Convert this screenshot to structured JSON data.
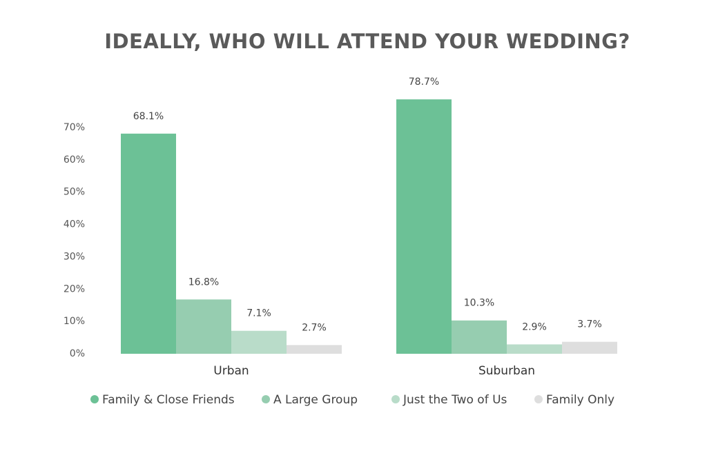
{
  "chart_data": {
    "type": "bar",
    "title": "IDEALLY, WHO WILL ATTEND YOUR WEDDING?",
    "categories": [
      "Urban",
      "Suburban"
    ],
    "series": [
      {
        "name": "Family & Close Friends",
        "color": "#6cc196",
        "values": [
          68.1,
          78.7
        ],
        "value_labels": [
          "68.1%",
          "78.7%"
        ]
      },
      {
        "name": "A Large Group",
        "color": "#96cdb0",
        "values": [
          16.8,
          10.3
        ],
        "value_labels": [
          "16.8%",
          "10.3%"
        ]
      },
      {
        "name": "Just the Two of Us",
        "color": "#b9dcc9",
        "values": [
          7.1,
          2.9
        ],
        "value_labels": [
          "7.1%",
          "2.9%"
        ]
      },
      {
        "name": "Family Only",
        "color": "#dedede",
        "values": [
          2.7,
          3.7
        ],
        "value_labels": [
          "2.7%",
          "3.7%"
        ]
      }
    ],
    "ylim": [
      0,
      80
    ],
    "yticks": [
      {
        "value": 0,
        "label": "0%"
      },
      {
        "value": 10,
        "label": "10%"
      },
      {
        "value": 20,
        "label": "20%"
      },
      {
        "value": 30,
        "label": "30%"
      },
      {
        "value": 40,
        "label": "40%"
      },
      {
        "value": 50,
        "label": "50%"
      },
      {
        "value": 60,
        "label": "60%"
      },
      {
        "value": 70,
        "label": "70%"
      }
    ],
    "grid": false,
    "legend": "bottom"
  }
}
